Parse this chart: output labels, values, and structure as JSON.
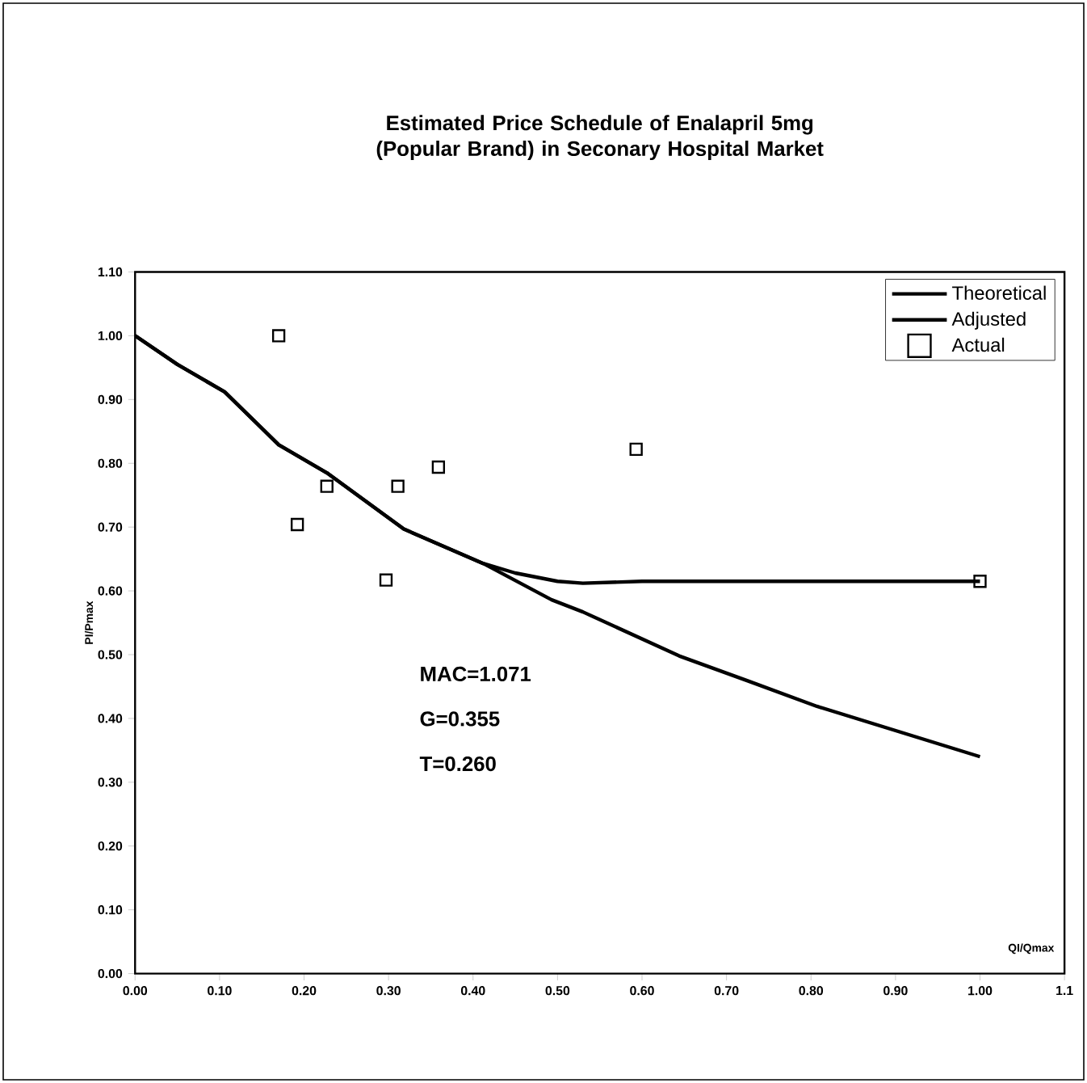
{
  "chart_data": {
    "type": "line",
    "title": "Estimated Price Schedule of Enalapril 5mg (Popular Brand) in Seconary Hospital Market",
    "xlabel": "QI/Qmax",
    "ylabel": "PI/Pmax",
    "annotations": [
      "MAC=1.071",
      "G=0.355",
      "T=0.260"
    ],
    "xlim": [
      0,
      1.1
    ],
    "ylim": [
      0,
      1.1
    ],
    "xticks": [
      {
        "value": 0,
        "label": "0.00"
      },
      {
        "value": 0.1,
        "label": "0.10"
      },
      {
        "value": 0.2,
        "label": "0.20"
      },
      {
        "value": 0.3,
        "label": "0.30"
      },
      {
        "value": 0.4,
        "label": "0.40"
      },
      {
        "value": 0.5,
        "label": "0.50"
      },
      {
        "value": 0.6,
        "label": "0.60"
      },
      {
        "value": 0.7,
        "label": "0.70"
      },
      {
        "value": 0.8,
        "label": "0.80"
      },
      {
        "value": 0.9,
        "label": "0.90"
      },
      {
        "value": 1.0,
        "label": "1.00"
      },
      1.1
    ],
    "yticks": [
      {
        "value": 0,
        "label": "0.00"
      },
      {
        "value": 0.1,
        "label": "0.10"
      },
      {
        "value": 0.2,
        "label": "0.20"
      },
      {
        "value": 0.3,
        "label": "0.30"
      },
      {
        "value": 0.4,
        "label": "0.40"
      },
      {
        "value": 0.5,
        "label": "0.50"
      },
      {
        "value": 0.6,
        "label": "0.60"
      },
      {
        "value": 0.7,
        "label": "0.70"
      },
      {
        "value": 0.8,
        "label": "0.80"
      },
      {
        "value": 0.9,
        "label": "0.90"
      },
      {
        "value": 1.0,
        "label": "1.00"
      },
      {
        "value": 1.1,
        "label": "1.10"
      }
    ],
    "grid": false,
    "legend": "top right",
    "line_style": "solid",
    "series": [
      {
        "name": "Theoretical",
        "color": "#000000",
        "marker": "none",
        "x": [
          0,
          0.05,
          0.106,
          0.17,
          0.227,
          0.318,
          0.412,
          0.493,
          0.53,
          0.644,
          0.725,
          0.807,
          1.0
        ],
        "values": [
          1.0,
          0.955,
          0.912,
          0.829,
          0.785,
          0.697,
          0.643,
          0.586,
          0.567,
          0.498,
          0.459,
          0.419,
          0.34
        ]
      },
      {
        "name": "Adjusted",
        "color": "#000000",
        "marker": "none",
        "x": [
          0,
          0.05,
          0.106,
          0.17,
          0.227,
          0.318,
          0.412,
          0.45,
          0.5,
          0.53,
          0.6,
          1.0
        ],
        "values": [
          1.0,
          0.955,
          0.912,
          0.829,
          0.785,
          0.697,
          0.643,
          0.628,
          0.615,
          0.612,
          0.615,
          0.615
        ]
      },
      {
        "name": "Actual",
        "type": "scatter",
        "color": "#000000",
        "marker": "square",
        "x": [
          0.17,
          0.192,
          0.227,
          0.297,
          0.311,
          0.359,
          0.593,
          1.0
        ],
        "values": [
          1.0,
          0.704,
          0.764,
          0.617,
          0.764,
          0.794,
          0.822,
          0.615
        ]
      }
    ]
  }
}
